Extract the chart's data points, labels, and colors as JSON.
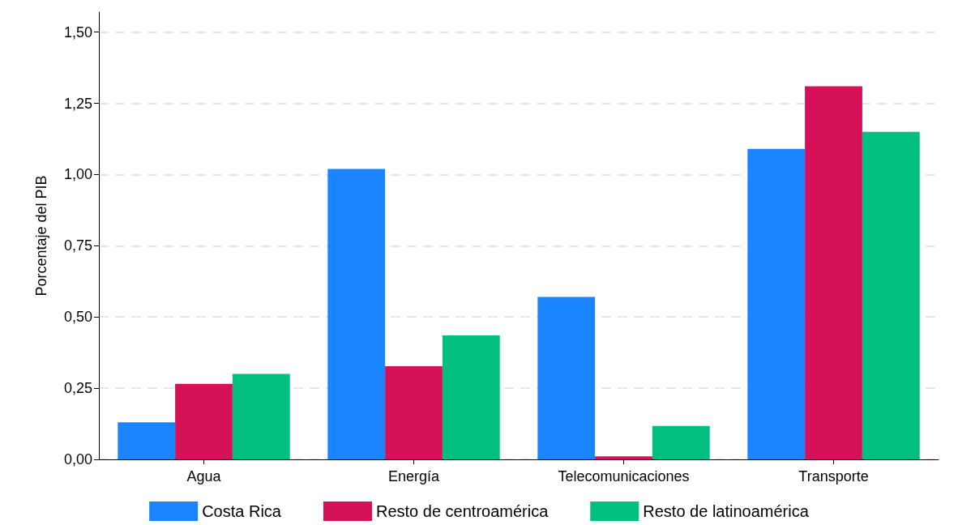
{
  "chart_data": {
    "type": "bar",
    "ylabel": "Porcentaje del PIB",
    "categories": [
      "Agua",
      "Energía",
      "Telecomunicaciones",
      "Transporte"
    ],
    "series": [
      {
        "name": "Costa Rica",
        "color": "#1a85ff",
        "values": [
          0.13,
          1.02,
          0.57,
          1.09
        ]
      },
      {
        "name": "Resto de centroamérica",
        "color": "#d41159",
        "values": [
          0.265,
          0.327,
          0.011,
          1.31
        ]
      },
      {
        "name": "Resto de latinoamérica",
        "color": "#00bf7f",
        "values": [
          0.3,
          0.435,
          0.117,
          1.15
        ]
      }
    ],
    "ylim": [
      0,
      1.57
    ],
    "yticks": [
      {
        "value": 0,
        "label": "0,00"
      },
      {
        "value": 0.25,
        "label": "0,25"
      },
      {
        "value": 0.5,
        "label": "0,50"
      },
      {
        "value": 0.75,
        "label": "0,75"
      },
      {
        "value": 1,
        "label": "1,00"
      },
      {
        "value": 1.25,
        "label": "1,25"
      },
      {
        "value": 1.5,
        "label": "1,50"
      }
    ],
    "grid": "y",
    "legend": "bottom"
  }
}
